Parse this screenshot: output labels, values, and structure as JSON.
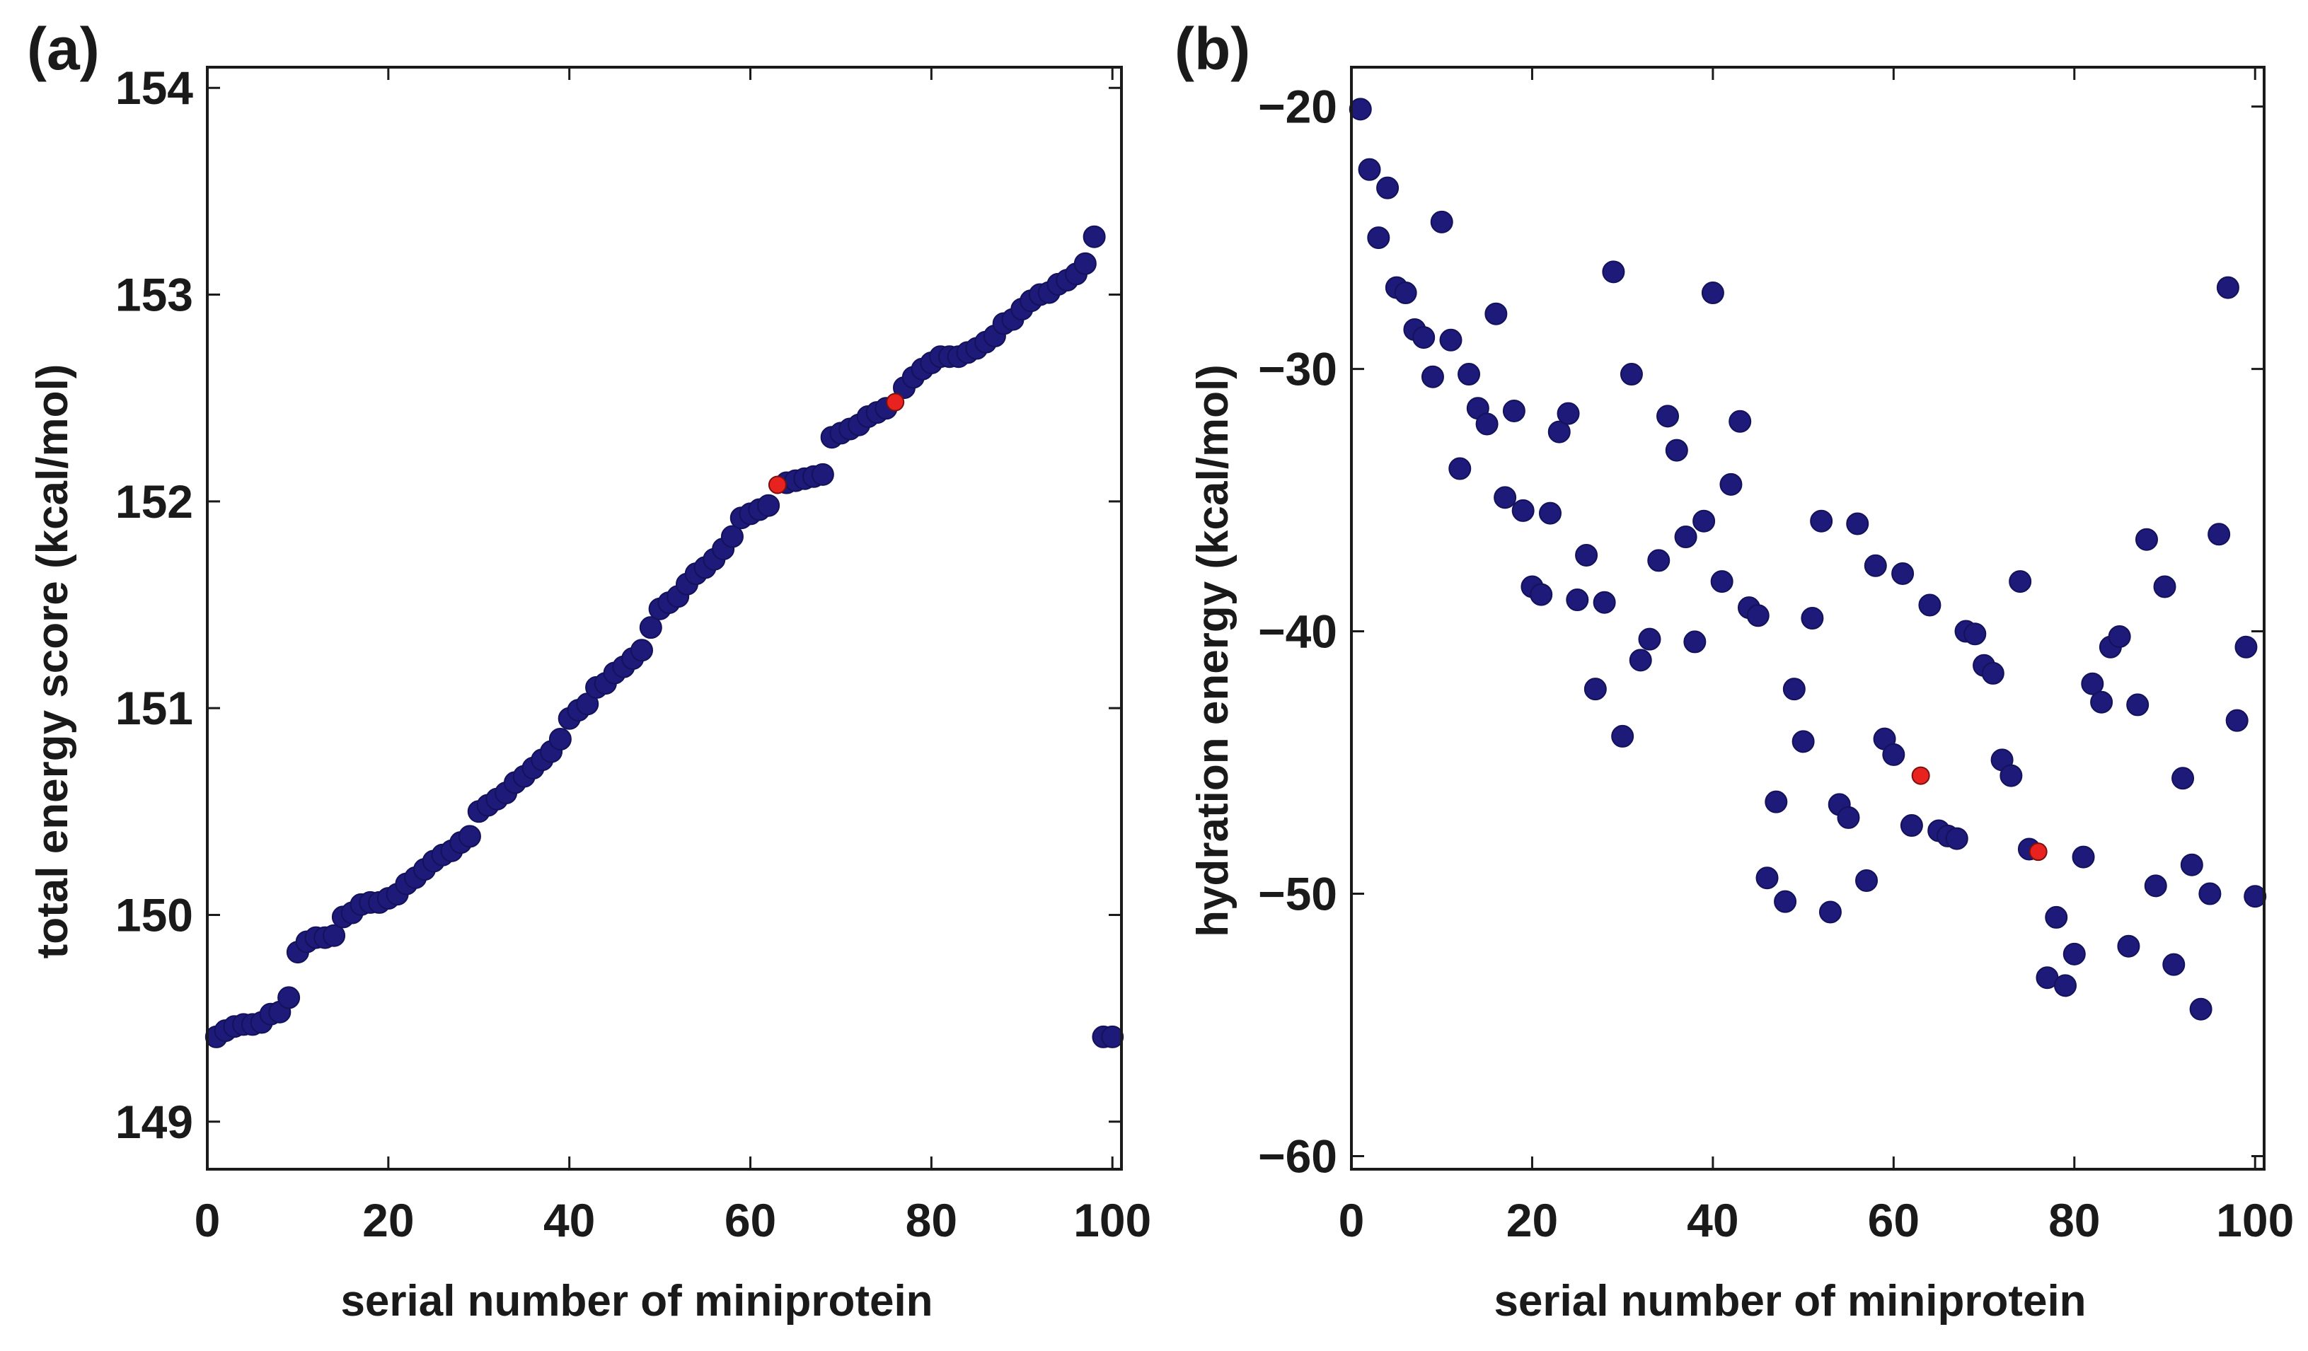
{
  "chart_data": [
    {
      "type": "scatter",
      "panel_label": "(a)",
      "title": "",
      "xlabel": "serial number of miniprotein",
      "ylabel": "total energy score (kcal/mol)",
      "xlim": [
        0,
        101
      ],
      "ylim": [
        148.77,
        154.1
      ],
      "xticks": [
        0,
        20,
        40,
        60,
        80,
        100
      ],
      "yticks": [
        149,
        150,
        151,
        152,
        153,
        154
      ],
      "grid": false,
      "colors": {
        "point": "#1d1a7a",
        "highlight": "#e8231f"
      },
      "series": [
        {
          "name": "miniproteins",
          "x": [
            1,
            2,
            3,
            4,
            5,
            6,
            7,
            8,
            9,
            10,
            11,
            12,
            13,
            14,
            15,
            16,
            17,
            18,
            19,
            20,
            21,
            22,
            23,
            24,
            25,
            26,
            27,
            28,
            29,
            30,
            31,
            32,
            33,
            34,
            35,
            36,
            37,
            38,
            39,
            40,
            41,
            42,
            43,
            44,
            45,
            46,
            47,
            48,
            49,
            50,
            51,
            52,
            53,
            54,
            55,
            56,
            57,
            58,
            59,
            60,
            61,
            62,
            64,
            65,
            66,
            67,
            68,
            69,
            70,
            71,
            72,
            73,
            74,
            75,
            77,
            78,
            79,
            80,
            81,
            82,
            83,
            84,
            85,
            86,
            87,
            88,
            89,
            90,
            91,
            92,
            93,
            94,
            95,
            96,
            97,
            98,
            99,
            100
          ],
          "y": [
            149.41,
            149.44,
            149.46,
            149.47,
            149.47,
            149.48,
            149.52,
            149.53,
            149.6,
            149.82,
            149.87,
            149.89,
            149.89,
            149.9,
            149.99,
            150.01,
            150.05,
            150.06,
            150.06,
            150.08,
            150.1,
            150.15,
            150.18,
            150.22,
            150.26,
            150.29,
            150.31,
            150.35,
            150.38,
            150.5,
            150.53,
            150.56,
            150.59,
            150.64,
            150.67,
            150.71,
            150.75,
            150.79,
            150.85,
            150.95,
            150.99,
            151.02,
            151.1,
            151.12,
            151.17,
            151.2,
            151.24,
            151.28,
            151.39,
            151.48,
            151.51,
            151.54,
            151.6,
            151.65,
            151.68,
            151.72,
            151.77,
            151.83,
            151.92,
            151.94,
            151.96,
            151.98,
            152.09,
            152.1,
            152.11,
            152.12,
            152.13,
            152.31,
            152.33,
            152.35,
            152.37,
            152.41,
            152.43,
            152.45,
            152.55,
            152.6,
            152.64,
            152.67,
            152.7,
            152.7,
            152.7,
            152.72,
            152.74,
            152.77,
            152.8,
            152.86,
            152.88,
            152.93,
            152.97,
            153.0,
            153.01,
            153.05,
            153.07,
            153.1,
            153.15,
            153.28,
            149.41,
            149.41
          ]
        },
        {
          "name": "highlighted",
          "x": [
            63,
            76
          ],
          "y": [
            152.08,
            152.48
          ]
        }
      ]
    },
    {
      "type": "scatter",
      "panel_label": "(b)",
      "title": "",
      "xlabel": "serial number of miniprotein",
      "ylabel": "hydration energy (kcal/mol)",
      "xlim": [
        0,
        101
      ],
      "ylim": [
        -60.5,
        -18.5
      ],
      "xticks": [
        0,
        20,
        40,
        60,
        80,
        100
      ],
      "yticks": [
        -20,
        -30,
        -40,
        -50,
        -60
      ],
      "ytick_labels": [
        "−20",
        "−30",
        "−40",
        "−50",
        "−60"
      ],
      "grid": false,
      "colors": {
        "point": "#1d1a7a",
        "highlight": "#e8231f"
      },
      "series": [
        {
          "name": "miniproteins",
          "x": [
            1,
            2,
            3,
            4,
            5,
            6,
            7,
            8,
            9,
            10,
            11,
            12,
            13,
            14,
            15,
            16,
            17,
            18,
            19,
            20,
            21,
            22,
            23,
            24,
            25,
            26,
            27,
            28,
            29,
            30,
            31,
            32,
            33,
            34,
            35,
            36,
            37,
            38,
            39,
            40,
            41,
            42,
            43,
            44,
            45,
            46,
            47,
            48,
            49,
            50,
            51,
            52,
            53,
            54,
            55,
            56,
            57,
            58,
            59,
            60,
            61,
            62,
            64,
            65,
            66,
            67,
            68,
            69,
            70,
            71,
            72,
            73,
            74,
            75,
            77,
            78,
            79,
            80,
            81,
            82,
            83,
            84,
            85,
            86,
            87,
            88,
            89,
            90,
            91,
            92,
            93,
            94,
            95,
            96,
            97,
            98,
            99,
            100
          ],
          "y": [
            -20.1,
            -22.4,
            -25.0,
            -23.1,
            -26.9,
            -27.1,
            -28.5,
            -28.8,
            -30.3,
            -24.4,
            -28.9,
            -33.8,
            -30.2,
            -31.5,
            -32.1,
            -27.9,
            -34.9,
            -31.6,
            -35.4,
            -38.3,
            -38.6,
            -35.5,
            -32.4,
            -31.7,
            -38.8,
            -37.1,
            -42.2,
            -38.9,
            -26.3,
            -44.0,
            -30.2,
            -41.1,
            -40.3,
            -37.3,
            -31.8,
            -33.1,
            -36.4,
            -40.4,
            -35.8,
            -27.1,
            -38.1,
            -34.4,
            -32.0,
            -39.1,
            -39.4,
            -49.4,
            -46.5,
            -50.3,
            -42.2,
            -44.2,
            -39.5,
            -35.8,
            -50.7,
            -46.6,
            -47.1,
            -35.9,
            -49.5,
            -37.5,
            -44.1,
            -44.7,
            -37.8,
            -47.4,
            -39.0,
            -47.6,
            -47.8,
            -47.9,
            -40.0,
            -40.1,
            -41.3,
            -41.6,
            -44.9,
            -45.5,
            -38.1,
            -48.3,
            -53.2,
            -50.9,
            -53.5,
            -52.3,
            -48.6,
            -42.0,
            -42.7,
            -40.6,
            -40.2,
            -52.0,
            -42.8,
            -36.5,
            -49.7,
            -38.3,
            -52.7,
            -45.6,
            -48.9,
            -54.4,
            -50.0,
            -36.3,
            -26.9,
            -43.4,
            -40.6,
            -50.1
          ]
        },
        {
          "name": "highlighted",
          "x": [
            63,
            76
          ],
          "y": [
            -45.5,
            -48.4
          ]
        }
      ]
    }
  ]
}
